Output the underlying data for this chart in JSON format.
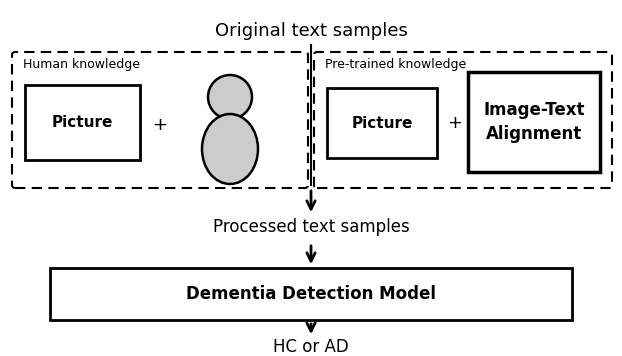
{
  "title": "Original text samples",
  "subtitle_human": "Human knowledge",
  "subtitle_pretrained": "Pre-trained knowledge",
  "label_picture": "Picture",
  "label_image_text": "Image-Text\nAlignment",
  "label_processed": "Processed text samples",
  "label_model": "Dementia Detection Model",
  "label_output": "HC or AD",
  "bg_color": "#ffffff",
  "person_fill": "#cccccc",
  "title_fontsize": 13,
  "subtitle_fontsize": 9,
  "picture_fontsize": 11,
  "plus_fontsize": 13,
  "processed_fontsize": 12,
  "model_fontsize": 12,
  "output_fontsize": 12
}
